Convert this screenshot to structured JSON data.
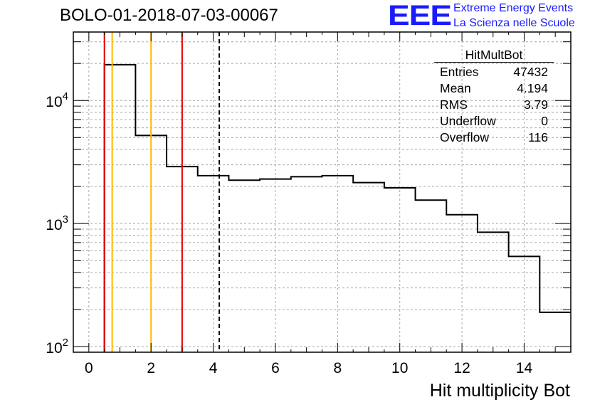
{
  "header": {
    "title": "BOLO-01-2018-07-03-00067",
    "logo_text": "EEE",
    "logo_line1": "Extreme Energy Events",
    "logo_line2": "La Scienza nelle Scuole",
    "logo_color": "#1a1aff"
  },
  "stats_box": {
    "title": "HitMultBot",
    "rows": [
      {
        "label": "Entries",
        "value": "47432"
      },
      {
        "label": "Mean",
        "value": "4.194"
      },
      {
        "label": "RMS",
        "value": "3.79"
      },
      {
        "label": "Underflow",
        "value": "0"
      },
      {
        "label": "Overflow",
        "value": "116"
      }
    ]
  },
  "chart_data": {
    "type": "histogram",
    "xlabel": "Hit multiplicity Bot",
    "ylabel": "",
    "xlim": [
      -0.5,
      15.5
    ],
    "ylim": [
      90,
      36000
    ],
    "yscale": "log",
    "grid": true,
    "x_ticks": [
      0,
      2,
      4,
      6,
      8,
      10,
      12,
      14
    ],
    "x_tick_labels": [
      "0",
      "2",
      "4",
      "6",
      "8",
      "10",
      "12",
      "14"
    ],
    "y_ticks": [
      100,
      1000,
      10000
    ],
    "y_tick_labels": [
      "10",
      "10",
      "10"
    ],
    "y_tick_exponents": [
      "2",
      "3",
      "4"
    ],
    "bins": {
      "edges": [
        -0.5,
        0.5,
        1.5,
        2.5,
        3.5,
        4.5,
        5.5,
        6.5,
        7.5,
        8.5,
        9.5,
        10.5,
        11.5,
        12.5,
        13.5,
        14.5,
        15.5
      ],
      "counts": [
        0,
        19500,
        5200,
        2900,
        2450,
        2250,
        2300,
        2400,
        2450,
        2150,
        1950,
        1550,
        1180,
        850,
        540,
        190
      ]
    },
    "histogram_color": "#000000",
    "vertical_lines": [
      {
        "x": 0.5,
        "color": "#e00000",
        "style": "solid"
      },
      {
        "x": 0.75,
        "color": "#ffb800",
        "style": "solid"
      },
      {
        "x": 2.0,
        "color": "#ffb800",
        "style": "solid"
      },
      {
        "x": 3.0,
        "color": "#e00000",
        "style": "solid"
      },
      {
        "x": 4.194,
        "color": "#000000",
        "style": "dashed"
      }
    ]
  }
}
